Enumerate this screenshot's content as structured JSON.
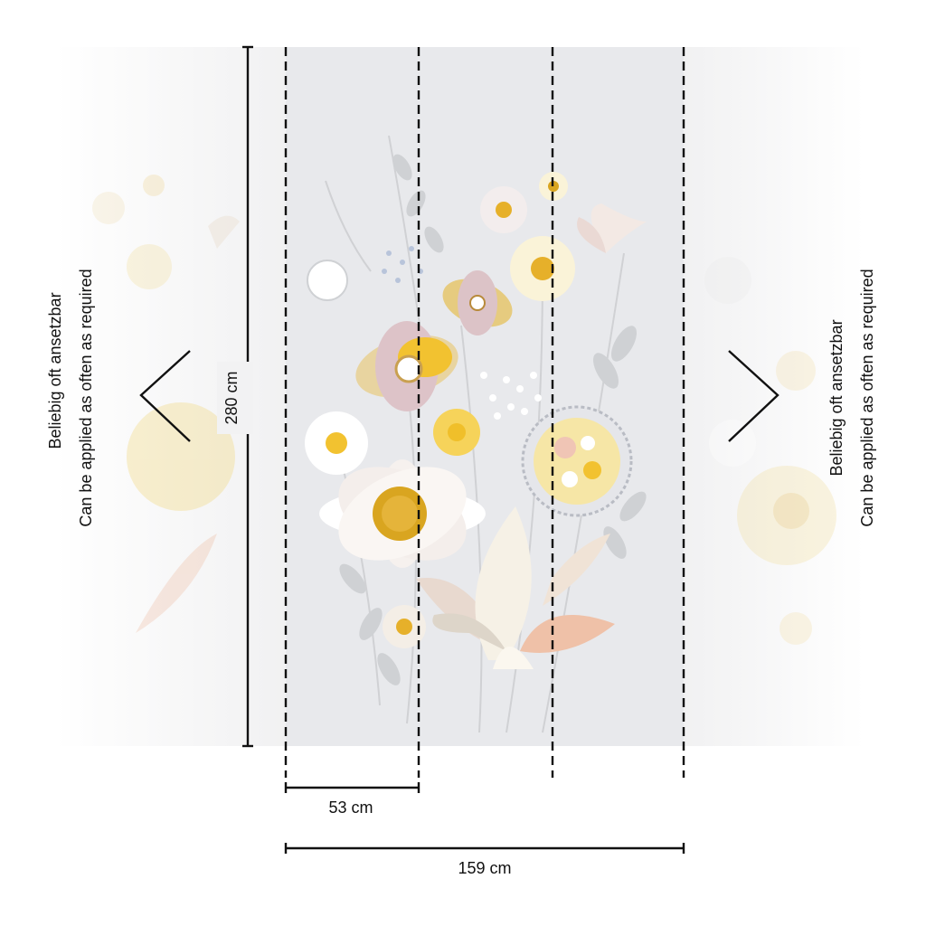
{
  "left_note": {
    "line1": "Beliebig oft ansetzbar",
    "line2": "Can be applied as often as required"
  },
  "right_note": {
    "line1": "Beliebig oft ansetzbar",
    "line2": "Can be applied as often as required"
  },
  "dimensions": {
    "height": "280 cm",
    "panel_width": "53 cm",
    "total_width": "159 cm"
  },
  "panel_count": 3,
  "colors": {
    "panel_background": "#e8e9ec",
    "side_fade": "#f3f3f3",
    "dimension_line": "#111111",
    "yellow": "#f2c230",
    "mustard": "#d9a520",
    "blush": "#d9b8b0",
    "lilac": "#cbbfc8",
    "leaf_grey": "#c9cbce",
    "peach": "#efc1a8"
  },
  "icons": {
    "left_arrow": "chevron-left-icon",
    "right_arrow": "chevron-right-icon"
  }
}
